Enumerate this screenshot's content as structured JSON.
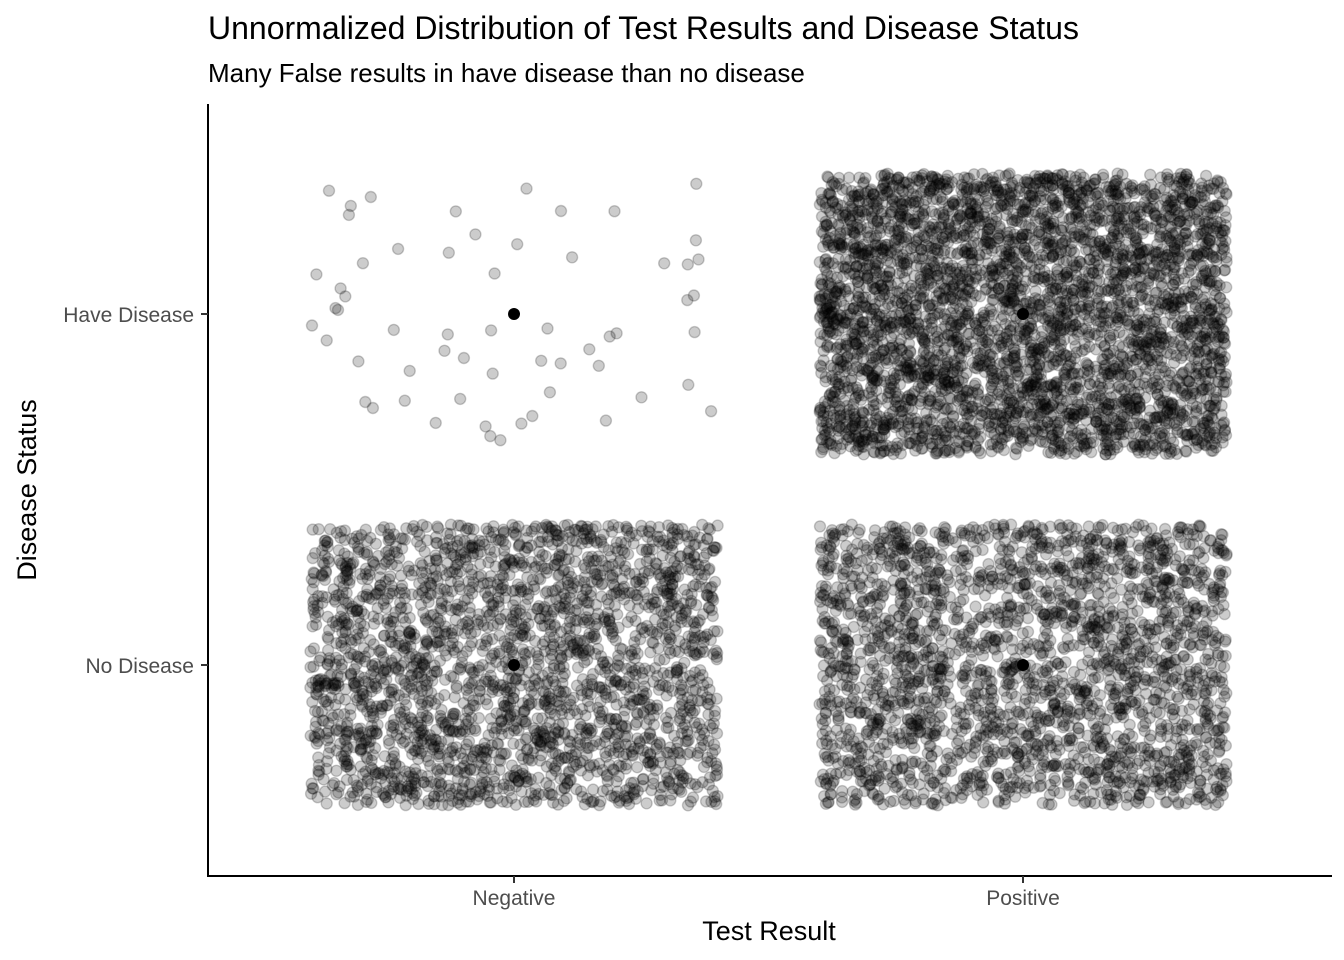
{
  "chart_data": {
    "type": "scatter",
    "title": "Unnormalized Distribution of Test Results and Disease Status",
    "subtitle": "Many False results in have disease than no disease",
    "xlabel": "Test Result",
    "ylabel": "Disease Status",
    "x_categories": [
      "Negative",
      "Positive"
    ],
    "y_categories": [
      "No Disease",
      "Have Disease"
    ],
    "grid": false,
    "point_color": "#000000",
    "point_alpha": 0.2,
    "jitter": 0.4,
    "groups": [
      {
        "test_result": "Negative",
        "disease_status": "No Disease",
        "count": 2500
      },
      {
        "test_result": "Negative",
        "disease_status": "Have Disease",
        "count": 60
      },
      {
        "test_result": "Positive",
        "disease_status": "No Disease",
        "count": 2500
      },
      {
        "test_result": "Positive",
        "disease_status": "Have Disease",
        "count": 4000
      }
    ]
  }
}
